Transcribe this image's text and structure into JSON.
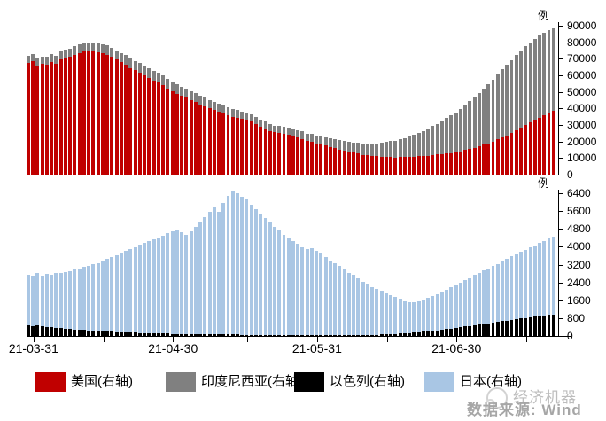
{
  "panels": {
    "top": {
      "unit": "例",
      "y_ticks": [
        0,
        10000,
        20000,
        30000,
        40000,
        50000,
        60000,
        70000,
        80000,
        90000
      ],
      "y_max": 90000
    },
    "bottom": {
      "unit": "例",
      "y_ticks": [
        0,
        800,
        1600,
        2400,
        3200,
        4000,
        4800,
        5600,
        6400
      ],
      "y_max": 6400
    }
  },
  "x_axis": {
    "tick_labels": [
      "21-03-31",
      "21-04-30",
      "21-05-31",
      "21-06-30"
    ],
    "labeled_tick_indices": [
      1,
      31,
      62,
      92
    ],
    "minor_tick_indices": [
      16,
      47,
      77,
      107
    ]
  },
  "legend": [
    {
      "key": "us",
      "label": "美国(右轴)",
      "color": "#C00000"
    },
    {
      "key": "indonesia",
      "label": "印度尼西亚(右轴)",
      "color": "#808080"
    },
    {
      "key": "israel",
      "label": "以色列(右轴)",
      "color": "#000000"
    },
    {
      "key": "japan",
      "label": "日本(右轴)",
      "color": "#A9C6E4"
    }
  ],
  "watermark": {
    "brand": "经济机器",
    "source": "数据来源: Wind"
  },
  "chart_data": [
    {
      "type": "bar",
      "stacked": true,
      "panel": "top",
      "unit": "例",
      "ylim": [
        0,
        90000
      ],
      "x_tick_labels": [
        "21-03-31",
        "21-04-30",
        "21-05-31",
        "21-06-30"
      ],
      "legend_position": "bottom",
      "series": [
        {
          "key": "us",
          "name": "美国(右轴)",
          "color": "#C00000",
          "values": [
            67500,
            68500,
            66000,
            67000,
            66500,
            68000,
            67000,
            69500,
            70500,
            71000,
            72500,
            73500,
            74500,
            75000,
            74800,
            74000,
            73500,
            72500,
            71000,
            69500,
            68000,
            66500,
            64500,
            63000,
            61500,
            60000,
            58500,
            57000,
            55500,
            54000,
            52000,
            50500,
            49000,
            47500,
            46500,
            45000,
            44000,
            42500,
            41500,
            40000,
            39000,
            38000,
            37000,
            36000,
            35000,
            34300,
            33600,
            33000,
            32000,
            30500,
            29000,
            28000,
            26500,
            25500,
            25000,
            24500,
            24000,
            23500,
            22500,
            21500,
            20500,
            19800,
            19000,
            18200,
            17500,
            16800,
            16000,
            15200,
            14500,
            13800,
            13200,
            12600,
            12000,
            11600,
            11200,
            11000,
            10800,
            10600,
            10500,
            10400,
            10500,
            10600,
            10700,
            10800,
            11000,
            11200,
            11500,
            11800,
            12100,
            12400,
            12800,
            13100,
            13500,
            14000,
            14800,
            15500,
            16200,
            17000,
            18000,
            19000,
            20000,
            21200,
            22500,
            23800,
            25200,
            26800,
            28400,
            30000,
            31500,
            33000,
            34500,
            36000,
            37300,
            38600
          ]
        },
        {
          "key": "indonesia",
          "name": "印度尼西亚(右轴)",
          "color": "#808080",
          "values": [
            4500,
            4600,
            4700,
            4500,
            4800,
            5000,
            4900,
            5100,
            5000,
            5200,
            5300,
            5100,
            5300,
            5000,
            5200,
            5400,
            5300,
            5500,
            5400,
            5600,
            5500,
            5700,
            5500,
            5600,
            5800,
            5700,
            5900,
            5800,
            6000,
            5900,
            5800,
            6000,
            5800,
            5600,
            5700,
            5500,
            5300,
            5400,
            5200,
            5000,
            5100,
            4900,
            4800,
            4900,
            4700,
            4600,
            4500,
            4400,
            4500,
            4300,
            4200,
            4300,
            4200,
            4100,
            4200,
            4300,
            4200,
            4400,
            4300,
            4500,
            4400,
            4600,
            4700,
            4800,
            5000,
            5100,
            5300,
            5500,
            5700,
            6000,
            6200,
            6500,
            6800,
            7200,
            7600,
            8000,
            8500,
            9000,
            9600,
            10200,
            10900,
            11600,
            12400,
            13300,
            14200,
            15200,
            16300,
            17500,
            18700,
            20000,
            21400,
            22800,
            24200,
            25700,
            27200,
            28800,
            30500,
            32200,
            33900,
            35700,
            37500,
            39300,
            41000,
            42500,
            44000,
            45300,
            46500,
            47500,
            48300,
            49000,
            49500,
            49800,
            50000,
            50000
          ]
        }
      ]
    },
    {
      "type": "bar",
      "stacked": true,
      "panel": "bottom",
      "unit": "例",
      "ylim": [
        0,
        6400
      ],
      "x_tick_labels": [
        "21-03-31",
        "21-04-30",
        "21-05-31",
        "21-06-30"
      ],
      "legend_position": "bottom",
      "series": [
        {
          "key": "israel",
          "name": "以色列(右轴)",
          "color": "#000000",
          "values": [
            460,
            440,
            480,
            420,
            400,
            380,
            360,
            340,
            330,
            310,
            290,
            270,
            260,
            240,
            230,
            210,
            200,
            190,
            180,
            170,
            160,
            150,
            145,
            140,
            130,
            125,
            120,
            115,
            110,
            105,
            100,
            95,
            90,
            90,
            85,
            85,
            80,
            80,
            75,
            75,
            70,
            70,
            65,
            65,
            60,
            60,
            55,
            55,
            50,
            50,
            50,
            45,
            45,
            45,
            40,
            40,
            40,
            40,
            35,
            35,
            35,
            30,
            30,
            30,
            30,
            25,
            25,
            25,
            30,
            30,
            35,
            35,
            40,
            45,
            50,
            55,
            60,
            70,
            80,
            90,
            100,
            115,
            130,
            145,
            160,
            180,
            200,
            225,
            250,
            275,
            300,
            330,
            360,
            390,
            420,
            450,
            480,
            510,
            540,
            570,
            600,
            630,
            660,
            690,
            720,
            750,
            780,
            810,
            840,
            870,
            890,
            915,
            935,
            950
          ]
        },
        {
          "key": "japan",
          "name": "日本(右轴)",
          "color": "#A9C6E4",
          "values": [
            2300,
            2250,
            2350,
            2300,
            2400,
            2350,
            2450,
            2500,
            2550,
            2600,
            2700,
            2750,
            2850,
            2900,
            3000,
            3050,
            3150,
            3250,
            3350,
            3450,
            3550,
            3650,
            3750,
            3850,
            3950,
            4050,
            4150,
            4200,
            4300,
            4400,
            4500,
            4600,
            4700,
            4550,
            4450,
            4600,
            4800,
            5000,
            5250,
            5500,
            5700,
            5500,
            5900,
            6200,
            6450,
            6350,
            6200,
            6050,
            5850,
            5650,
            5450,
            5250,
            5050,
            4850,
            4700,
            4500,
            4350,
            4200,
            4100,
            3950,
            3850,
            3900,
            3800,
            3650,
            3500,
            3350,
            3250,
            3100,
            2950,
            2800,
            2700,
            2550,
            2400,
            2300,
            2150,
            2050,
            1950,
            1850,
            1750,
            1650,
            1550,
            1450,
            1400,
            1380,
            1400,
            1450,
            1500,
            1550,
            1600,
            1700,
            1750,
            1850,
            1950,
            2000,
            2100,
            2150,
            2250,
            2300,
            2400,
            2450,
            2550,
            2600,
            2700,
            2750,
            2850,
            2900,
            3000,
            3050,
            3150,
            3200,
            3300,
            3350,
            3450,
            3500
          ]
        }
      ]
    }
  ]
}
